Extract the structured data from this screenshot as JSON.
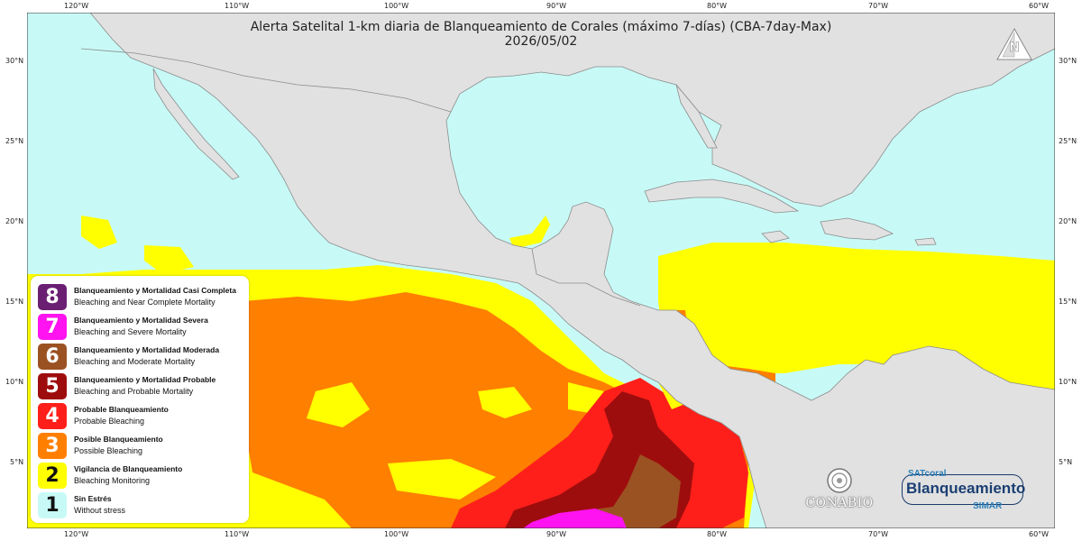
{
  "title": {
    "line1": "Alerta Satelital 1-km diaria de Blanqueamiento de Corales (máximo 7-días) (CBA-7day-Max)",
    "line2": "2026/05/02"
  },
  "axes": {
    "longitudes": [
      "120°W",
      "110°W",
      "100°W",
      "90°W",
      "80°W",
      "70°W",
      "60°W"
    ],
    "latitudes": [
      "30°N",
      "25°N",
      "20°N",
      "15°N",
      "10°N",
      "5°N"
    ]
  },
  "legend": [
    {
      "level": "8",
      "es": "Blanqueamiento y Mortalidad Casi Completa",
      "en": "Bleaching and Near Complete Mortality",
      "color": "#6b1f73",
      "text_color": "#ffffff"
    },
    {
      "level": "7",
      "es": "Blanqueamiento y Mortalidad Severa",
      "en": "Bleaching and Severe Mortality",
      "color": "#ff13f0",
      "text_color": "#ffffff"
    },
    {
      "level": "6",
      "es": "Blanqueamiento y Mortalidad Moderada",
      "en": "Bleaching and Moderate Mortality",
      "color": "#9b5223",
      "text_color": "#ffffff"
    },
    {
      "level": "5",
      "es": "Blanqueamiento y Mortalidad Probable",
      "en": "Bleaching and Probable Mortality",
      "color": "#9e0d0d",
      "text_color": "#ffffff"
    },
    {
      "level": "4",
      "es": "Probable Blanqueamiento",
      "en": "Probable Bleaching",
      "color": "#ff1f1a",
      "text_color": "#ffffff"
    },
    {
      "level": "3",
      "es": "Posible Blanqueamiento",
      "en": "Possible Bleaching",
      "color": "#ff7f00",
      "text_color": "#ffffff"
    },
    {
      "level": "2",
      "es": "Vigilancia de Blanqueamiento",
      "en": "Bleaching Monitoring",
      "color": "#ffff00",
      "text_color": "#111111"
    },
    {
      "level": "1",
      "es": "Sin Estrés",
      "en": "Without stress",
      "color": "#c7faf7",
      "text_color": "#111111"
    }
  ],
  "logos": {
    "conabio": "CONABIO",
    "badge_top": "SATcoral",
    "badge_main": "Blanqueamiento",
    "badge_bottom": "SIMAR"
  },
  "icons": {
    "north_arrow": "north-arrow-icon"
  },
  "colors": {
    "ocean": "#c7faf7",
    "land": "#e1e1e1",
    "border": "#8c8c8c"
  }
}
